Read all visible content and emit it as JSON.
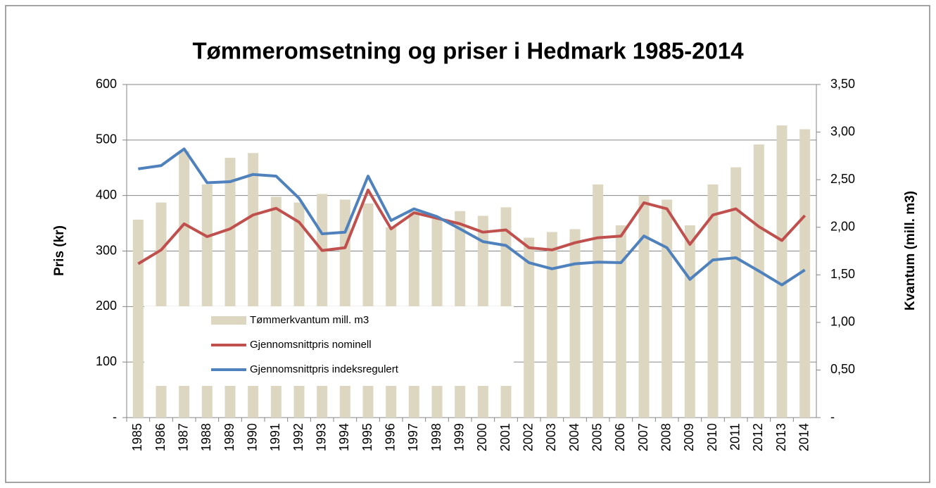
{
  "chart_data": {
    "type": "bar",
    "title": "Tømmeromsetning og priser i Hedmark 1985-2014",
    "y_label": "Pris (kr)",
    "y2_label": "Kvantum (mill. m3)",
    "categories": [
      "1985",
      "1986",
      "1987",
      "1988",
      "1989",
      "1990",
      "1991",
      "1992",
      "1993",
      "1994",
      "1995",
      "1996",
      "1997",
      "1998",
      "1999",
      "2000",
      "2001",
      "2002",
      "2003",
      "2004",
      "2005",
      "2006",
      "2007",
      "2008",
      "2009",
      "2010",
      "2011",
      "2012",
      "2013",
      "2014"
    ],
    "series": [
      {
        "name": "Tømmerkvantum mill. m3",
        "type": "bar",
        "axis": "y2",
        "color": "#ddd7c2",
        "values": [
          2.08,
          2.26,
          2.8,
          2.45,
          2.73,
          2.78,
          2.32,
          2.26,
          2.35,
          2.29,
          2.25,
          2.0,
          2.17,
          2.09,
          2.17,
          2.12,
          2.21,
          1.89,
          1.95,
          1.98,
          2.45,
          2.02,
          2.33,
          2.29,
          2.02,
          2.45,
          2.63,
          2.87,
          3.07,
          3.03
        ]
      },
      {
        "name": "Gjennomsnittpris nominell",
        "type": "line",
        "color": "#c0504d",
        "values": [
          277,
          302,
          349,
          326,
          340,
          365,
          377,
          352,
          301,
          306,
          410,
          340,
          369,
          359,
          349,
          334,
          338,
          306,
          302,
          315,
          324,
          327,
          387,
          376,
          312,
          365,
          376,
          344,
          319,
          364
        ]
      },
      {
        "name": "Gjennomsnittpris indeksregulert",
        "type": "line",
        "color": "#4f81bd",
        "values": [
          448,
          454,
          484,
          423,
          425,
          438,
          435,
          395,
          331,
          334,
          435,
          355,
          376,
          362,
          340,
          317,
          310,
          279,
          268,
          277,
          280,
          279,
          327,
          306,
          249,
          284,
          288,
          264,
          239,
          266
        ]
      }
    ],
    "ylim": [
      0,
      600
    ],
    "yticks": [
      {
        "value": 0,
        "label": "-"
      },
      100,
      200,
      300,
      400,
      500,
      600
    ],
    "y2lim": [
      0,
      3.5
    ],
    "y2ticks": [
      {
        "value": 0,
        "label": "-"
      },
      {
        "value": 0.5,
        "label": "0,50"
      },
      {
        "value": 1,
        "label": "1,00"
      },
      {
        "value": 1.5,
        "label": "1,50"
      },
      {
        "value": 2,
        "label": "2,00"
      },
      {
        "value": 2.5,
        "label": "2,50"
      },
      {
        "value": 3,
        "label": "3,00"
      },
      {
        "value": 3.5,
        "label": "3,50"
      }
    ],
    "grid": true,
    "legend": "lower left"
  }
}
